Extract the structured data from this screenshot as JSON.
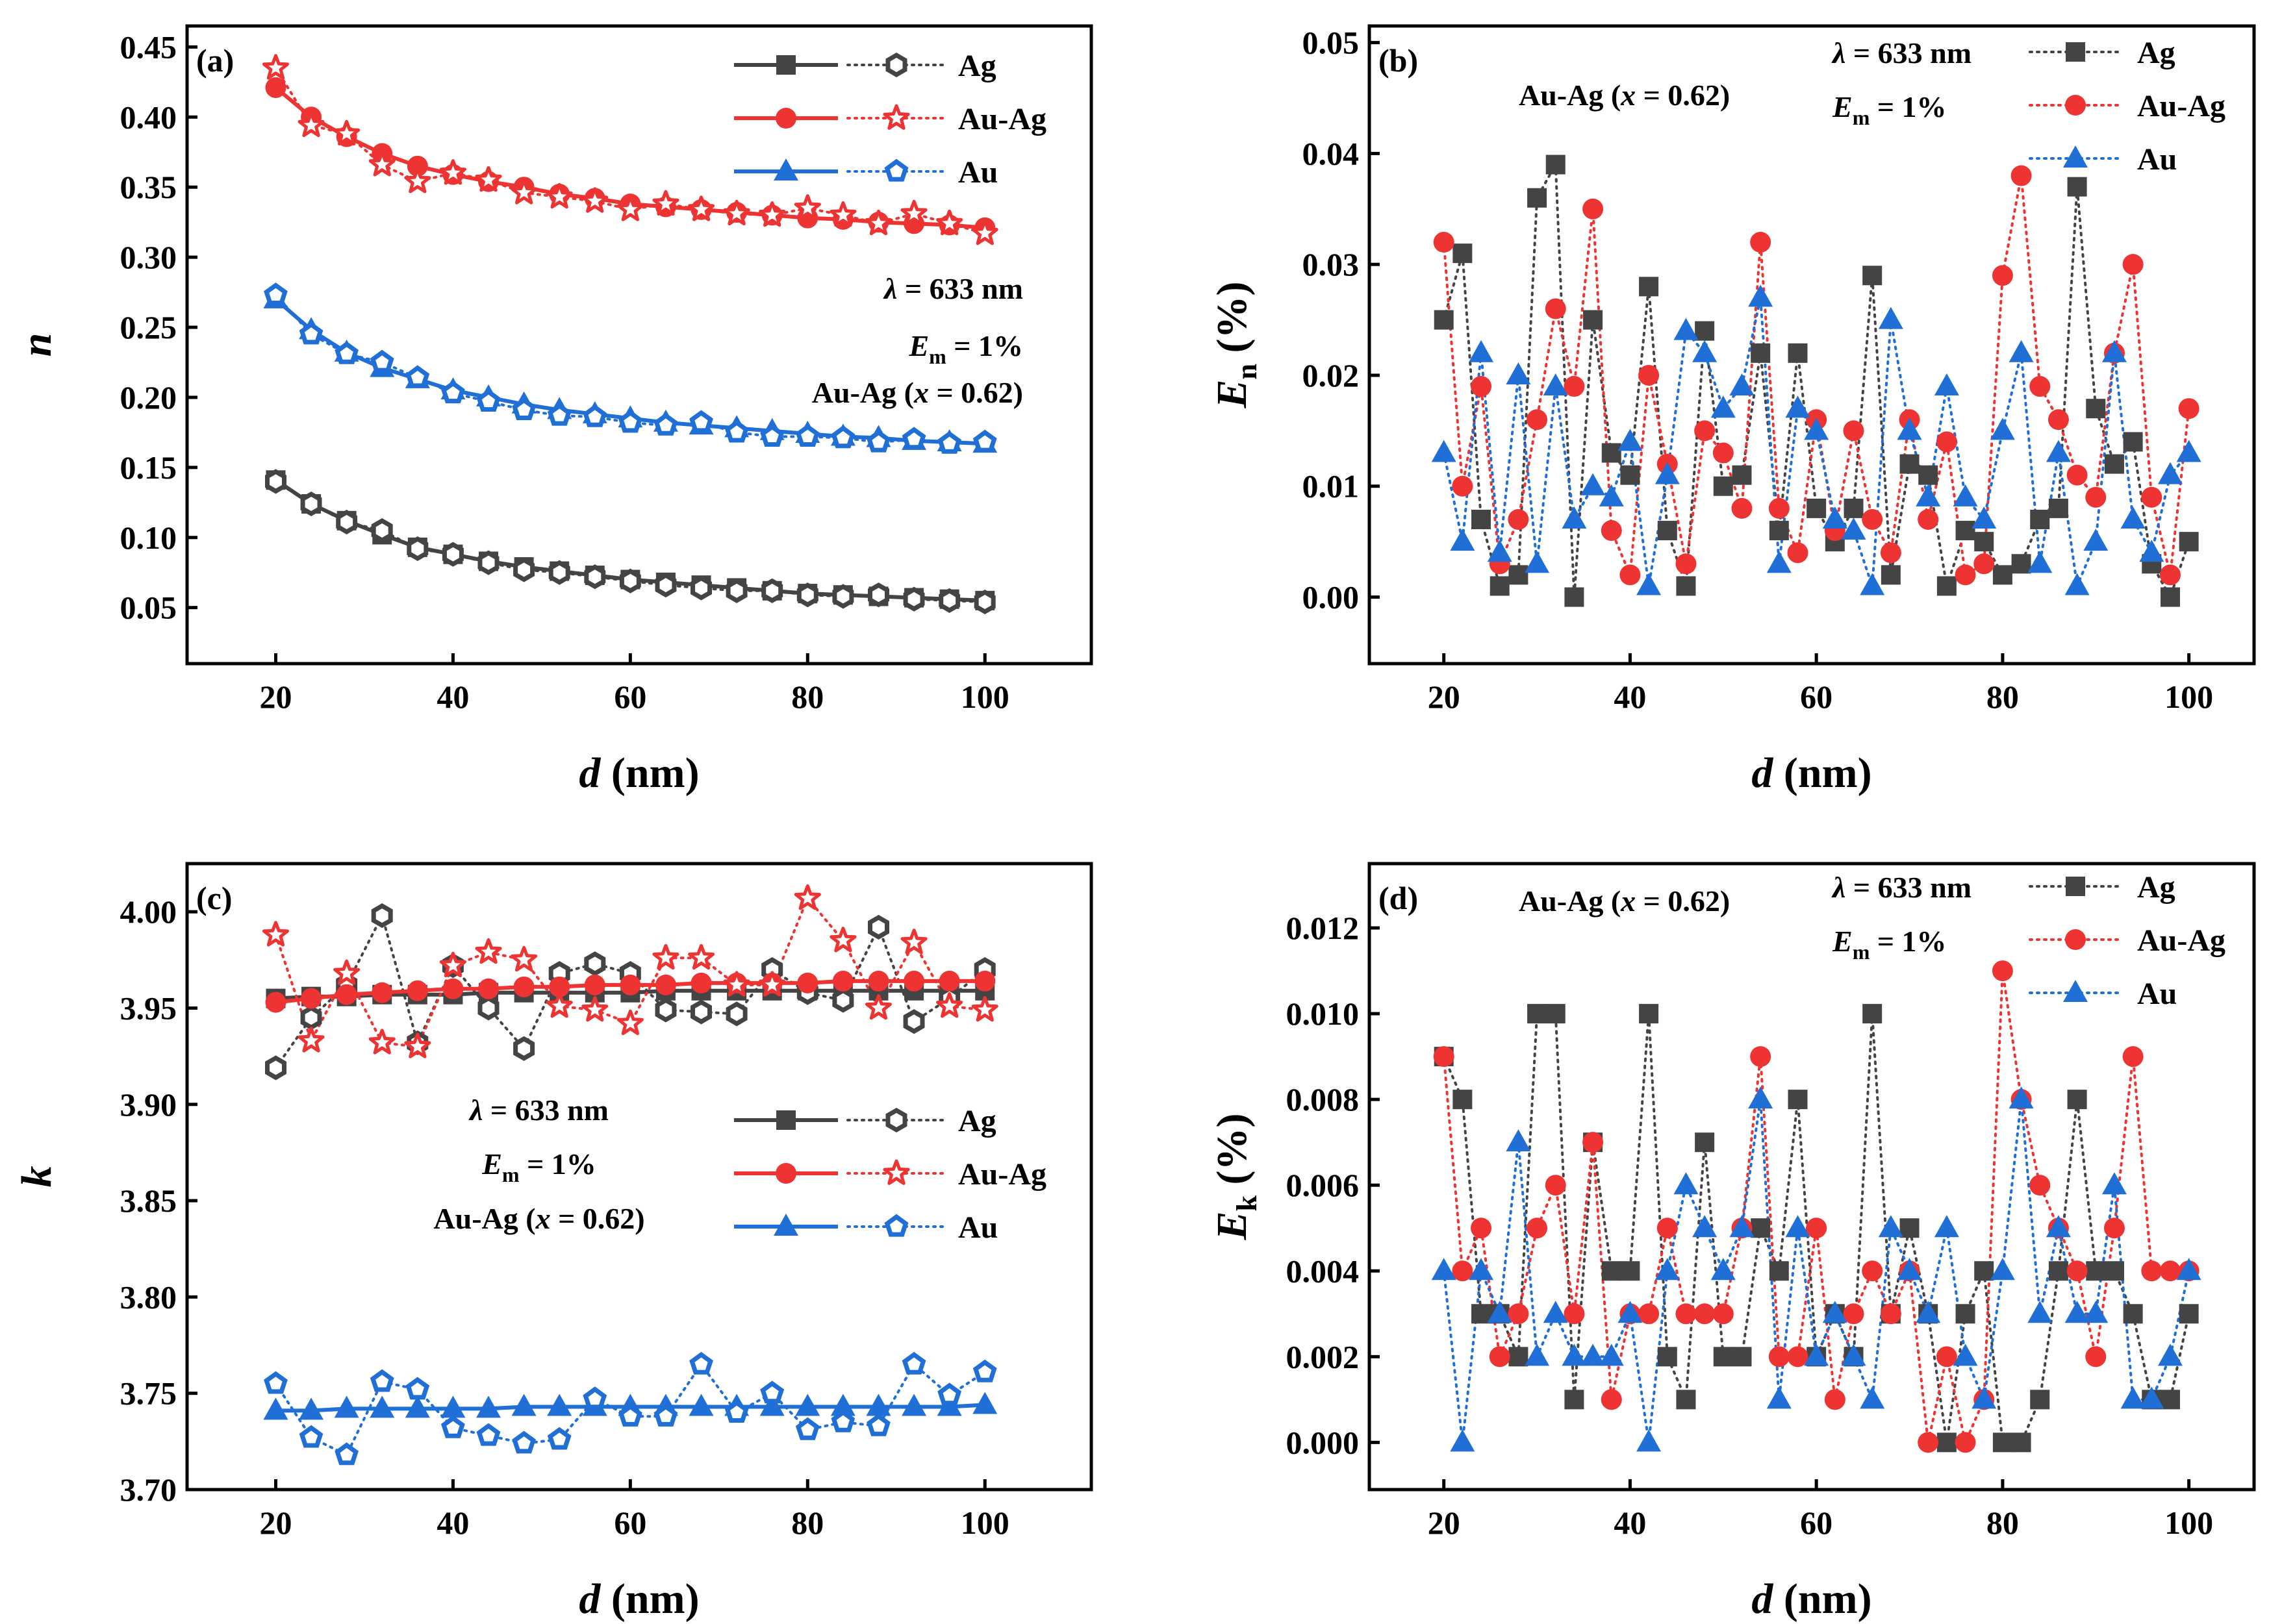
{
  "figure": {
    "colors": {
      "Ag": "#444444",
      "Au-Ag": "#ee3333",
      "Au": "#1f6fd6"
    },
    "legend_labels": [
      "Ag",
      "Au-Ag",
      "Au"
    ]
  },
  "chart_data": [
    {
      "id": "a",
      "panel_label": "(a)",
      "type": "line",
      "xlabel": {
        "main": "d",
        "unit": " (nm)"
      },
      "ylabel": {
        "main": "n",
        "sub": ""
      },
      "xlim": [
        10,
        112
      ],
      "ylim": [
        0.01,
        0.465
      ],
      "xticks": [
        20,
        40,
        60,
        80,
        100
      ],
      "yticks": [
        0.05,
        0.1,
        0.15,
        0.2,
        0.25,
        0.3,
        0.35,
        0.4,
        0.45
      ],
      "ytick_labels": [
        "0.05",
        "0.10",
        "0.15",
        "0.20",
        "0.25",
        "0.30",
        "0.35",
        "0.40",
        "0.45"
      ],
      "annotations": [
        "λ = 633 nm",
        "Em = 1%",
        "Au-Ag (x = 0.62)"
      ],
      "x": [
        20,
        24,
        28,
        32,
        36,
        40,
        44,
        48,
        52,
        56,
        60,
        64,
        68,
        72,
        76,
        80,
        84,
        88,
        92,
        96,
        100
      ],
      "series": [
        {
          "name": "Ag",
          "kind": "fit",
          "values": [
            0.141,
            0.124,
            0.112,
            0.102,
            0.093,
            0.088,
            0.083,
            0.079,
            0.076,
            0.073,
            0.07,
            0.068,
            0.066,
            0.064,
            0.062,
            0.06,
            0.059,
            0.058,
            0.057,
            0.056,
            0.055
          ]
        },
        {
          "name": "Ag",
          "kind": "sim",
          "values": [
            0.14,
            0.124,
            0.111,
            0.105,
            0.092,
            0.088,
            0.082,
            0.077,
            0.075,
            0.072,
            0.069,
            0.066,
            0.064,
            0.062,
            0.062,
            0.059,
            0.058,
            0.059,
            0.056,
            0.055,
            0.054
          ]
        },
        {
          "name": "Au-Ag",
          "kind": "fit",
          "values": [
            0.421,
            0.4,
            0.386,
            0.374,
            0.365,
            0.359,
            0.354,
            0.35,
            0.345,
            0.342,
            0.338,
            0.336,
            0.334,
            0.332,
            0.33,
            0.328,
            0.327,
            0.325,
            0.324,
            0.323,
            0.321
          ]
        },
        {
          "name": "Au-Ag",
          "kind": "sim",
          "values": [
            0.435,
            0.394,
            0.388,
            0.366,
            0.354,
            0.36,
            0.355,
            0.346,
            0.343,
            0.34,
            0.334,
            0.338,
            0.334,
            0.331,
            0.33,
            0.335,
            0.33,
            0.324,
            0.331,
            0.324,
            0.317
          ]
        },
        {
          "name": "Au",
          "kind": "fit",
          "values": [
            0.27,
            0.248,
            0.232,
            0.221,
            0.213,
            0.205,
            0.2,
            0.195,
            0.191,
            0.188,
            0.185,
            0.182,
            0.18,
            0.178,
            0.176,
            0.174,
            0.172,
            0.171,
            0.169,
            0.168,
            0.167
          ]
        },
        {
          "name": "Au",
          "kind": "sim",
          "values": [
            0.273,
            0.245,
            0.231,
            0.225,
            0.214,
            0.203,
            0.197,
            0.191,
            0.187,
            0.186,
            0.182,
            0.18,
            0.182,
            0.175,
            0.172,
            0.172,
            0.171,
            0.168,
            0.17,
            0.167,
            0.168
          ]
        }
      ]
    },
    {
      "id": "b",
      "panel_label": "(b)",
      "type": "line",
      "xlabel": {
        "main": "d",
        "unit": " (nm)"
      },
      "ylabel": {
        "main": "E",
        "sub": "n",
        "unit": " (%)"
      },
      "xlim": [
        12,
        107
      ],
      "ylim": [
        -0.006,
        0.0515
      ],
      "xticks": [
        20,
        40,
        60,
        80,
        100
      ],
      "yticks": [
        0.0,
        0.01,
        0.02,
        0.03,
        0.04,
        0.05
      ],
      "ytick_labels": [
        "0.00",
        "0.01",
        "0.02",
        "0.03",
        "0.04",
        "0.05"
      ],
      "annotations": [
        "Au-Ag (x = 0.62)",
        "λ = 633 nm",
        "Em = 1%"
      ],
      "x": [
        20,
        22,
        24,
        26,
        28,
        30,
        32,
        34,
        36,
        38,
        40,
        42,
        44,
        46,
        48,
        50,
        52,
        54,
        56,
        58,
        60,
        62,
        64,
        66,
        68,
        70,
        72,
        74,
        76,
        78,
        80,
        82,
        84,
        86,
        88,
        90,
        92,
        94,
        96,
        98,
        100
      ],
      "series": [
        {
          "name": "Ag",
          "values": [
            0.025,
            0.031,
            0.007,
            0.001,
            0.002,
            0.036,
            0.039,
            0.0,
            0.025,
            0.013,
            0.011,
            0.028,
            0.006,
            0.001,
            0.024,
            0.01,
            0.011,
            0.022,
            0.006,
            0.022,
            0.008,
            0.005,
            0.008,
            0.029,
            0.002,
            0.012,
            0.011,
            0.001,
            0.006,
            0.005,
            0.002,
            0.003,
            0.007,
            0.008,
            0.037,
            0.017,
            0.012,
            0.014,
            0.003,
            0.0,
            0.005
          ]
        },
        {
          "name": "Au-Ag",
          "values": [
            0.032,
            0.01,
            0.019,
            0.003,
            0.007,
            0.016,
            0.026,
            0.019,
            0.035,
            0.006,
            0.002,
            0.02,
            0.012,
            0.003,
            0.015,
            0.013,
            0.008,
            0.032,
            0.008,
            0.004,
            0.016,
            0.006,
            0.015,
            0.007,
            0.004,
            0.016,
            0.007,
            0.014,
            0.002,
            0.003,
            0.029,
            0.038,
            0.019,
            0.016,
            0.011,
            0.009,
            0.022,
            0.03,
            0.009,
            0.002,
            0.017
          ]
        },
        {
          "name": "Au",
          "values": [
            0.013,
            0.005,
            0.022,
            0.004,
            0.02,
            0.003,
            0.019,
            0.007,
            0.01,
            0.009,
            0.014,
            0.001,
            0.011,
            0.024,
            0.022,
            0.017,
            0.019,
            0.027,
            0.003,
            0.017,
            0.015,
            0.007,
            0.006,
            0.001,
            0.025,
            0.015,
            0.009,
            0.019,
            0.009,
            0.007,
            0.015,
            0.022,
            0.003,
            0.013,
            0.001,
            0.005,
            0.022,
            0.007,
            0.004,
            0.011,
            0.013
          ]
        }
      ]
    },
    {
      "id": "c",
      "panel_label": "(c)",
      "type": "line",
      "xlabel": {
        "main": "d",
        "unit": " (nm)"
      },
      "ylabel": {
        "main": "k",
        "sub": ""
      },
      "xlim": [
        10,
        112
      ],
      "ylim": [
        3.7,
        4.025
      ],
      "xticks": [
        20,
        40,
        60,
        80,
        100
      ],
      "yticks": [
        3.7,
        3.75,
        3.8,
        3.85,
        3.9,
        3.95,
        4.0
      ],
      "ytick_labels": [
        "3.70",
        "3.75",
        "3.80",
        "3.85",
        "3.90",
        "3.95",
        "4.00"
      ],
      "annotations": [
        "λ = 633 nm",
        "Em = 1%",
        "Au-Ag (x = 0.62)"
      ],
      "x": [
        20,
        24,
        28,
        32,
        36,
        40,
        44,
        48,
        52,
        56,
        60,
        64,
        68,
        72,
        76,
        80,
        84,
        88,
        92,
        96,
        100
      ],
      "series": [
        {
          "name": "Ag",
          "kind": "fit",
          "values": [
            3.955,
            3.956,
            3.956,
            3.957,
            3.957,
            3.957,
            3.958,
            3.958,
            3.958,
            3.958,
            3.958,
            3.959,
            3.959,
            3.959,
            3.959,
            3.959,
            3.959,
            3.959,
            3.959,
            3.959,
            3.959
          ]
        },
        {
          "name": "Ag",
          "kind": "sim",
          "values": [
            3.919,
            3.945,
            3.962,
            3.998,
            3.932,
            3.972,
            3.95,
            3.929,
            3.968,
            3.973,
            3.968,
            3.949,
            3.948,
            3.947,
            3.97,
            3.958,
            3.954,
            3.992,
            3.943,
            3.955,
            3.97
          ]
        },
        {
          "name": "Au-Ag",
          "kind": "fit",
          "values": [
            3.953,
            3.955,
            3.957,
            3.958,
            3.959,
            3.96,
            3.96,
            3.961,
            3.961,
            3.962,
            3.962,
            3.962,
            3.963,
            3.963,
            3.963,
            3.963,
            3.964,
            3.964,
            3.964,
            3.964,
            3.964
          ]
        },
        {
          "name": "Au-Ag",
          "kind": "sim",
          "values": [
            3.988,
            3.933,
            3.968,
            3.932,
            3.93,
            3.972,
            3.979,
            3.975,
            3.951,
            3.949,
            3.942,
            3.976,
            3.976,
            3.962,
            3.962,
            4.007,
            3.985,
            3.95,
            3.984,
            3.951,
            3.949
          ]
        },
        {
          "name": "Au",
          "kind": "fit",
          "values": [
            3.741,
            3.741,
            3.742,
            3.742,
            3.742,
            3.742,
            3.742,
            3.743,
            3.743,
            3.743,
            3.743,
            3.743,
            3.743,
            3.743,
            3.743,
            3.743,
            3.743,
            3.743,
            3.743,
            3.743,
            3.744
          ]
        },
        {
          "name": "Au",
          "kind": "sim",
          "values": [
            3.755,
            3.727,
            3.718,
            3.756,
            3.752,
            3.732,
            3.728,
            3.724,
            3.726,
            3.747,
            3.738,
            3.738,
            3.765,
            3.74,
            3.75,
            3.731,
            3.735,
            3.733,
            3.765,
            3.749,
            3.761
          ]
        }
      ]
    },
    {
      "id": "d",
      "panel_label": "(d)",
      "type": "line",
      "xlabel": {
        "main": "d",
        "unit": " (nm)"
      },
      "ylabel": {
        "main": "E",
        "sub": "k",
        "unit": " (%)"
      },
      "xlim": [
        12,
        107
      ],
      "ylim": [
        -0.0011,
        0.0135
      ],
      "xticks": [
        20,
        40,
        60,
        80,
        100
      ],
      "yticks": [
        0.0,
        0.002,
        0.004,
        0.006,
        0.008,
        0.01,
        0.012
      ],
      "ytick_labels": [
        "0.000",
        "0.002",
        "0.004",
        "0.006",
        "0.008",
        "0.010",
        "0.012"
      ],
      "annotations": [
        "Au-Ag (x = 0.62)",
        "λ = 633 nm",
        "Em = 1%"
      ],
      "x": [
        20,
        22,
        24,
        26,
        28,
        30,
        32,
        34,
        36,
        38,
        40,
        42,
        44,
        46,
        48,
        50,
        52,
        54,
        56,
        58,
        60,
        62,
        64,
        66,
        68,
        70,
        72,
        74,
        76,
        78,
        80,
        82,
        84,
        86,
        88,
        90,
        92,
        94,
        96,
        98,
        100
      ],
      "series": [
        {
          "name": "Ag",
          "values": [
            0.009,
            0.008,
            0.003,
            0.003,
            0.002,
            0.01,
            0.01,
            0.001,
            0.007,
            0.004,
            0.004,
            0.01,
            0.002,
            0.001,
            0.007,
            0.002,
            0.002,
            0.005,
            0.004,
            0.008,
            0.002,
            0.003,
            0.002,
            0.01,
            0.003,
            0.005,
            0.003,
            0.0,
            0.003,
            0.004,
            0.0,
            0.0,
            0.001,
            0.004,
            0.008,
            0.004,
            0.004,
            0.003,
            0.001,
            0.001,
            0.003
          ]
        },
        {
          "name": "Au-Ag",
          "values": [
            0.009,
            0.004,
            0.005,
            0.002,
            0.003,
            0.005,
            0.006,
            0.003,
            0.007,
            0.001,
            0.003,
            0.003,
            0.005,
            0.003,
            0.003,
            0.003,
            0.005,
            0.009,
            0.002,
            0.002,
            0.005,
            0.001,
            0.003,
            0.004,
            0.003,
            0.004,
            0.0,
            0.002,
            0.0,
            0.001,
            0.011,
            0.008,
            0.006,
            0.005,
            0.004,
            0.002,
            0.005,
            0.009,
            0.004,
            0.004,
            0.004
          ]
        },
        {
          "name": "Au",
          "values": [
            0.004,
            0.0,
            0.004,
            0.003,
            0.007,
            0.002,
            0.003,
            0.002,
            0.002,
            0.002,
            0.003,
            0.0,
            0.004,
            0.006,
            0.005,
            0.004,
            0.005,
            0.008,
            0.001,
            0.005,
            0.002,
            0.003,
            0.002,
            0.001,
            0.005,
            0.004,
            0.003,
            0.005,
            0.002,
            0.001,
            0.004,
            0.008,
            0.003,
            0.005,
            0.003,
            0.003,
            0.006,
            0.001,
            0.001,
            0.002,
            0.004
          ]
        }
      ]
    }
  ]
}
